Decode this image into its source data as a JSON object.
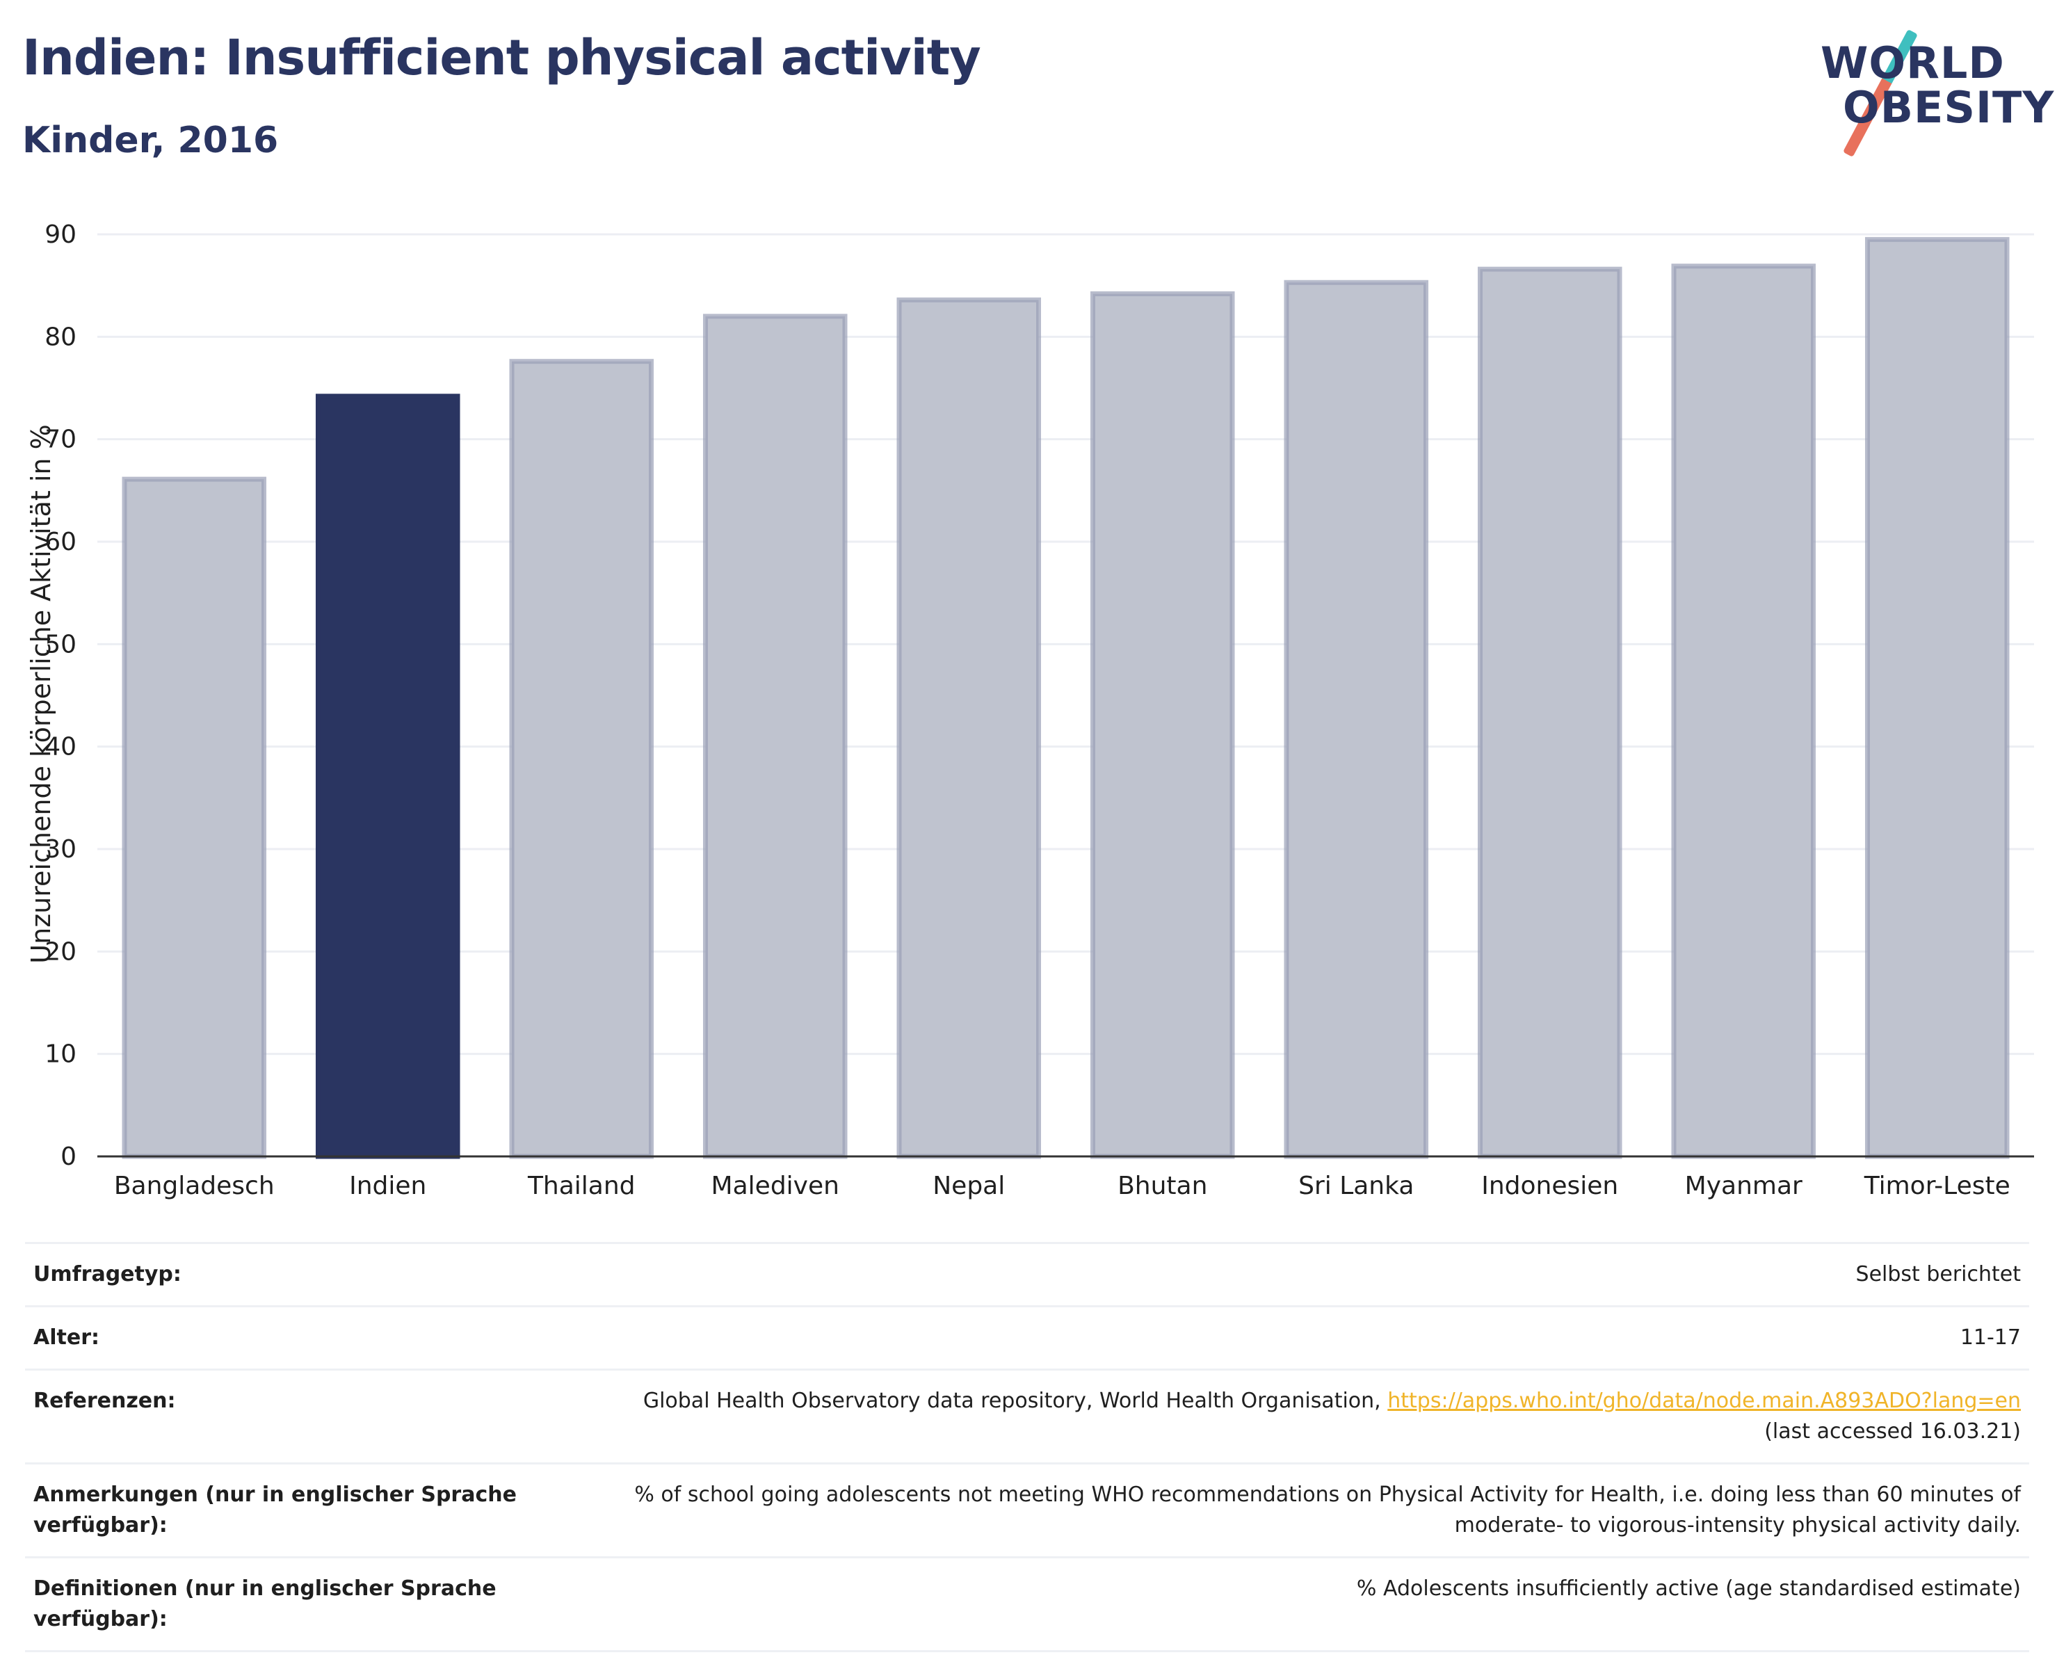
{
  "header": {
    "title": "Indien: Insufficient physical activity",
    "subtitle": "Kinder, 2016"
  },
  "logo": {
    "line1": "WORLD",
    "line2": "OBESITY",
    "colors": {
      "top": "#3fbfbf",
      "bottom": "#e8715c"
    }
  },
  "colors": {
    "highlight": "#2a3561",
    "bar_fill": "#bfc3cf",
    "bar_stroke": "#9aa0b6"
  },
  "chart_data": {
    "type": "bar",
    "categories": [
      "Bangladesch",
      "Indien",
      "Thailand",
      "Malediven",
      "Nepal",
      "Bhutan",
      "Sri Lanka",
      "Indonesien",
      "Myanmar",
      "Timor-Leste"
    ],
    "values": [
      66.1,
      74.2,
      77.6,
      82.0,
      83.6,
      84.2,
      85.3,
      86.6,
      86.9,
      89.5
    ],
    "highlight": "Indien",
    "ylabel": "Unzureichende körperliche Aktivität in %",
    "ylim": [
      0,
      90
    ],
    "yticks": [
      0,
      10,
      20,
      30,
      40,
      50,
      60,
      70,
      80,
      90
    ],
    "grid": true
  },
  "info": {
    "survey_type_label": "Umfragetyp:",
    "survey_type_value": "Selbst berichtet",
    "age_label": "Alter:",
    "age_value": "11-17",
    "references_label": "Referenzen:",
    "references_text": "Global Health Observatory data repository, World Health Organisation,",
    "references_link": "https://apps.who.int/gho/data/node.main.A893ADO?lang=en",
    "references_accessed": "(last accessed 16.03.21)",
    "notes_label": "Anmerkungen (nur in englischer Sprache verfügbar):",
    "notes_value": "% of school going adolescents not meeting WHO recommendations on Physical Activity for Health, i.e. doing less than 60 minutes of moderate- to vigorous-intensity physical activity daily.",
    "definitions_label": "Definitionen (nur in englischer Sprache verfügbar):",
    "definitions_value": "% Adolescents insufficiently active (age standardised estimate)"
  }
}
